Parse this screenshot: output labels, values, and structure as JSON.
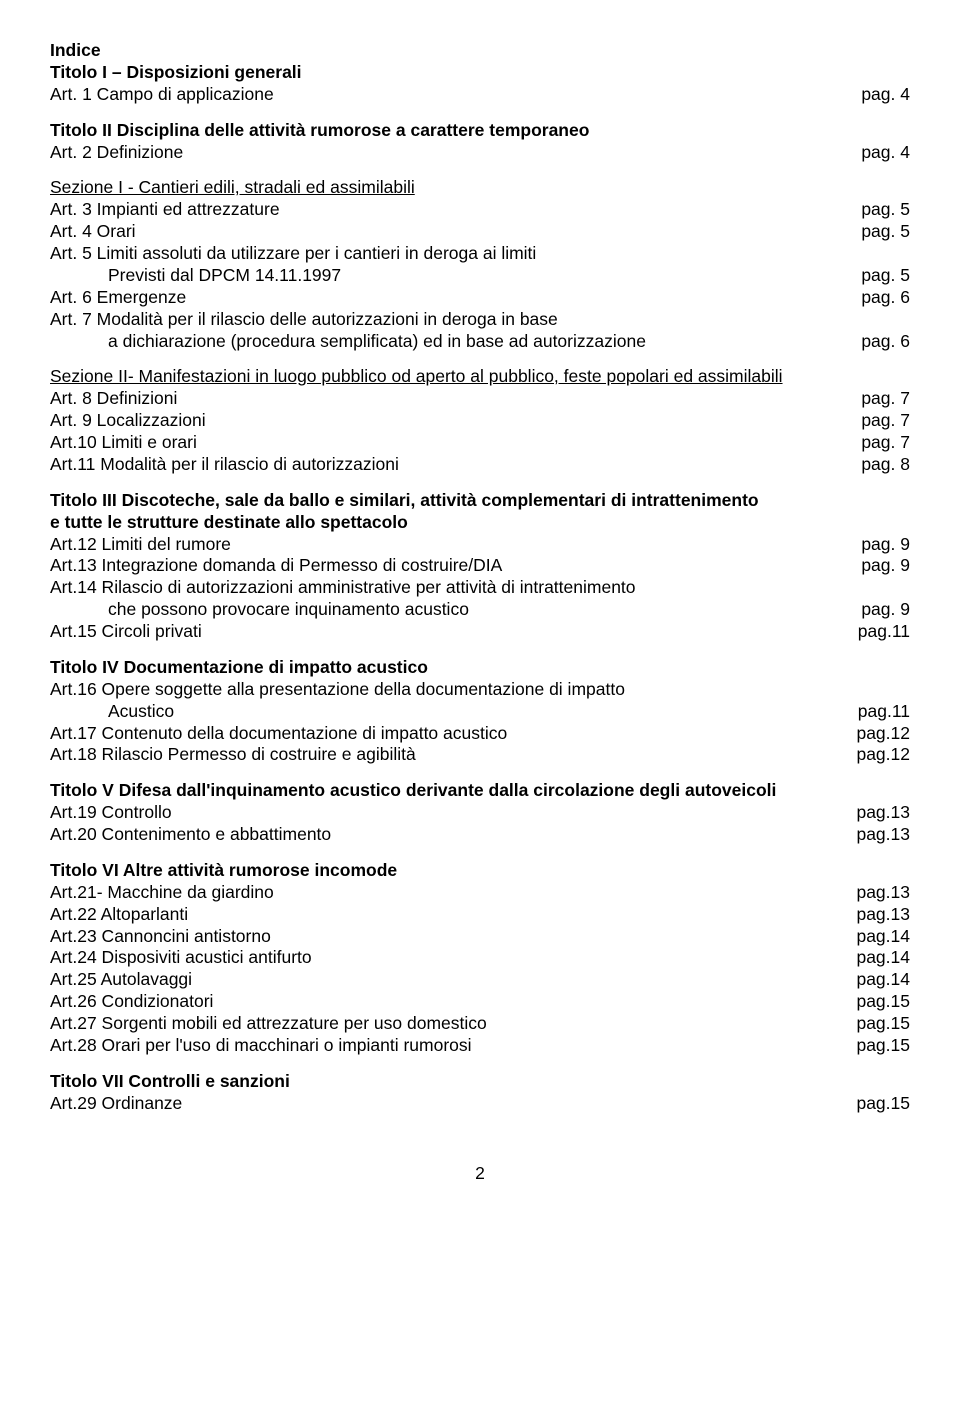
{
  "colors": {
    "text": "#000000",
    "background": "#ffffff"
  },
  "typography": {
    "fontFamily": "Arial",
    "baseFontSize": 17.5,
    "lineHeight": 1.25,
    "boldWeight": "bold"
  },
  "indiceLabel": "Indice",
  "pagLabel": "pag.",
  "pageNumber": "2",
  "titolo1": {
    "title": "Titolo I – Disposizioni generali",
    "entries": [
      {
        "text": "Art. 1 Campo di applicazione",
        "page": "4"
      }
    ]
  },
  "titolo2": {
    "title": "Titolo II Disciplina delle attività rumorose a carattere temporaneo",
    "entry0": {
      "text": "Art. 2 Definizione",
      "page": "4"
    },
    "sezione1": {
      "title": "Sezione I - Cantieri edili, stradali ed assimilabili",
      "entries": [
        {
          "text": "Art. 3 Impianti ed attrezzature",
          "page": "5"
        },
        {
          "text": "Art. 4 Orari",
          "page": "5"
        },
        {
          "line1": "Art. 5 Limiti assoluti da utilizzare per i cantieri in deroga ai limiti",
          "line2": "Previsti dal DPCM 14.11.1997",
          "page": "5"
        },
        {
          "text": "Art. 6 Emergenze",
          "page": "6"
        },
        {
          "line1": "Art. 7 Modalità per il rilascio delle  autorizzazioni in deroga in base",
          "line2": "a dichiarazione (procedura semplificata) ed in base ad autorizzazione",
          "page": "6"
        }
      ]
    },
    "sezione2": {
      "title": "Sezione II- Manifestazioni in luogo pubblico od aperto al pubblico, feste popolari ed assimilabili",
      "entries": [
        {
          "text": "Art. 8 Definizioni",
          "page": "7"
        },
        {
          "text": "Art. 9 Localizzazioni",
          "page": "7"
        },
        {
          "text": "Art.10 Limiti e orari",
          "page": "7"
        },
        {
          "text": "Art.11 Modalità per il rilascio di autorizzazioni",
          "page": "8"
        }
      ]
    }
  },
  "titolo3": {
    "titleLine1": "Titolo III Discoteche, sale da ballo e similari, attività complementari di intrattenimento",
    "titleLine2": " e tutte le strutture destinate allo spettacolo",
    "entries": [
      {
        "text": "Art.12 Limiti del rumore",
        "page": "9"
      },
      {
        "text": "Art.13 Integrazione domanda di Permesso di costruire/DIA",
        "page": "9"
      },
      {
        "line1": "Art.14 Rilascio di autorizzazioni amministrative per attività di intrattenimento",
        "line2": "che possono provocare  inquinamento acustico",
        "page": "9"
      },
      {
        "text": "Art.15 Circoli privati",
        "pageLabel": "pag.11"
      }
    ]
  },
  "titolo4": {
    "title": "Titolo IV Documentazione di impatto acustico",
    "entries": [
      {
        "line1": "Art.16 Opere soggette alla presentazione della documentazione di impatto",
        "line2": "Acustico",
        "pageLabel": "pag.11"
      },
      {
        "text": "Art.17 Contenuto della documentazione di impatto acustico",
        "pageLabel": "pag.12"
      },
      {
        "text": "Art.18 Rilascio Permesso di costruire e agibilità",
        "pageLabel": "pag.12"
      }
    ]
  },
  "titolo5": {
    "title": "Titolo V Difesa dall'inquinamento acustico derivante dalla circolazione degli autoveicoli",
    "entries": [
      {
        "text": "Art.19 Controllo",
        "pageLabel": "pag.13"
      },
      {
        "text": "Art.20 Contenimento e abbattimento",
        "pageLabel": "pag.13"
      }
    ]
  },
  "titolo6": {
    "title": "Titolo VI Altre attività rumorose incomode",
    "entries": [
      {
        "text": "Art.21- Macchine da giardino",
        "pageLabel": "pag.13"
      },
      {
        "text": "Art.22 Altoparlanti",
        "pageLabel": "pag.13"
      },
      {
        "text": "Art.23 Cannoncini antistorno",
        "pageLabel": "pag.14"
      },
      {
        "text": "Art.24 Disposiviti acustici antifurto",
        "pageLabel": "pag.14"
      },
      {
        "text": "Art.25 Autolavaggi",
        "pageLabel": "pag.14"
      },
      {
        "text": "Art.26 Condizionatori",
        "pageLabel": "pag.15"
      },
      {
        "text": "Art.27 Sorgenti mobili ed attrezzature per uso domestico",
        "pageLabel": "pag.15"
      },
      {
        "text": "Art.28 Orari per l'uso di macchinari o impianti rumorosi",
        "pageLabel": "pag.15"
      }
    ]
  },
  "titolo7": {
    "title": "Titolo VII Controlli e sanzioni",
    "entries": [
      {
        "text": "Art.29 Ordinanze",
        "pageLabel": "pag.15"
      }
    ]
  }
}
